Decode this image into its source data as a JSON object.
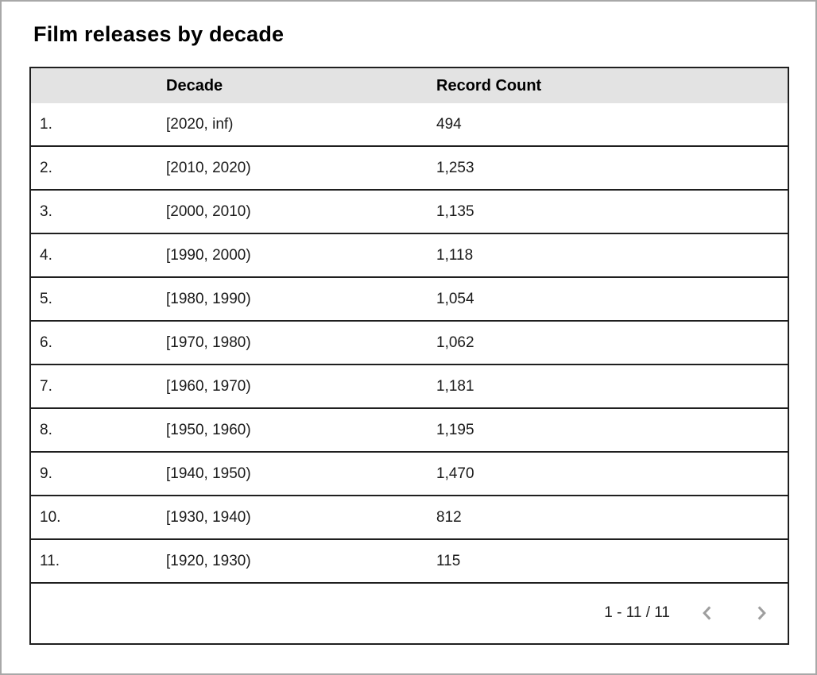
{
  "title": "Film releases by decade",
  "table": {
    "header": {
      "index_label": "",
      "decade_label": "Decade",
      "count_label": "Record Count"
    },
    "rows": [
      {
        "index": "1.",
        "decade": "[2020, inf)",
        "count": "494"
      },
      {
        "index": "2.",
        "decade": "[2010, 2020)",
        "count": "1,253"
      },
      {
        "index": "3.",
        "decade": "[2000, 2010)",
        "count": "1,135"
      },
      {
        "index": "4.",
        "decade": "[1990, 2000)",
        "count": "1,118"
      },
      {
        "index": "5.",
        "decade": "[1980, 1990)",
        "count": "1,054"
      },
      {
        "index": "6.",
        "decade": "[1970, 1980)",
        "count": "1,062"
      },
      {
        "index": "7.",
        "decade": "[1960, 1970)",
        "count": "1,181"
      },
      {
        "index": "8.",
        "decade": "[1950, 1960)",
        "count": "1,195"
      },
      {
        "index": "9.",
        "decade": "[1940, 1950)",
        "count": "1,470"
      },
      {
        "index": "10.",
        "decade": "[1930, 1940)",
        "count": "812"
      },
      {
        "index": "11.",
        "decade": "[1920, 1930)",
        "count": "115"
      }
    ]
  },
  "pagination": {
    "range": "1 - 11 / 11",
    "prev_icon": "chevron-left-icon",
    "next_icon": "chevron-right-icon"
  },
  "colors": {
    "frame_border": "#a8a8a8",
    "table_border": "#1f1f1f",
    "header_bg": "#e3e3e3",
    "chevron": "#9e9e9e",
    "text": "#1b1b1b"
  },
  "chart_data": {
    "type": "table",
    "title": "Film releases by decade",
    "columns": [
      "Decade",
      "Record Count"
    ],
    "rows": [
      [
        "[2020, inf)",
        494
      ],
      [
        "[2010, 2020)",
        1253
      ],
      [
        "[2000, 2010)",
        1135
      ],
      [
        "[1990, 2000)",
        1118
      ],
      [
        "[1980, 1990)",
        1054
      ],
      [
        "[1970, 1980)",
        1062
      ],
      [
        "[1960, 1970)",
        1181
      ],
      [
        "[1950, 1960)",
        1195
      ],
      [
        "[1940, 1950)",
        1470
      ],
      [
        "[1930, 1940)",
        812
      ],
      [
        "[1920, 1930)",
        115
      ]
    ],
    "pagination_label": "1 - 11 / 11"
  }
}
